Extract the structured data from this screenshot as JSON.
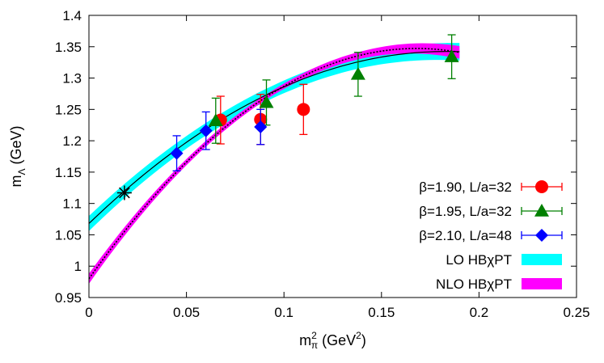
{
  "chart_data": {
    "type": "scatter",
    "xlabel": "m",
    "xlabel_sub": "π",
    "xlabel_sup": "2",
    "xlabel_unit_open": " (GeV",
    "xlabel_unit_sup": "2",
    "xlabel_unit_close": ")",
    "ylabel": "m",
    "ylabel_sub": "Λ",
    "ylabel_unit": " (GeV)",
    "xlim": [
      0,
      0.25
    ],
    "ylim": [
      0.95,
      1.4
    ],
    "xticks": [
      0,
      0.05,
      0.1,
      0.15,
      0.2,
      0.25
    ],
    "xtick_labels": [
      "0",
      "0.05",
      "0.1",
      "0.15",
      "0.2",
      "0.25"
    ],
    "yticks": [
      0.95,
      1.0,
      1.05,
      1.1,
      1.15,
      1.2,
      1.25,
      1.3,
      1.35,
      1.4
    ],
    "ytick_labels": [
      "0.95",
      "1",
      "1.05",
      "1.1",
      "1.15",
      "1.2",
      "1.25",
      "1.3",
      "1.35",
      "1.4"
    ],
    "grid": false,
    "legend_position": "bottom-right",
    "series": [
      {
        "name": "β=1.90, L/a=32",
        "marker": "circle",
        "color": "#ff0000",
        "points": [
          {
            "x": 0.0675,
            "y": 1.233,
            "err": 0.038
          },
          {
            "x": 0.088,
            "y": 1.234,
            "err": 0.04
          },
          {
            "x": 0.11,
            "y": 1.25,
            "err": 0.04
          }
        ]
      },
      {
        "name": "β=1.95, L/a=32",
        "marker": "triangle",
        "color": "#008000",
        "points": [
          {
            "x": 0.065,
            "y": 1.232,
            "err": 0.036
          },
          {
            "x": 0.091,
            "y": 1.261,
            "err": 0.036
          },
          {
            "x": 0.138,
            "y": 1.306,
            "err": 0.035
          },
          {
            "x": 0.186,
            "y": 1.334,
            "err": 0.035
          }
        ]
      },
      {
        "name": "β=2.10, L/a=48",
        "marker": "diamond",
        "color": "#0000ff",
        "points": [
          {
            "x": 0.045,
            "y": 1.18,
            "err": 0.028
          },
          {
            "x": 0.06,
            "y": 1.216,
            "err": 0.03
          },
          {
            "x": 0.088,
            "y": 1.222,
            "err": 0.028
          }
        ]
      }
    ],
    "bands": [
      {
        "name": "LO HBχPT",
        "color": "#00ffff",
        "x_range": [
          0,
          0.19
        ],
        "central": {
          "c0": 1.068,
          "c1": 3.0,
          "c2": -8.2
        },
        "halfwidth": [
          0.012,
          0.01,
          0.01,
          0.011,
          0.014
        ]
      },
      {
        "name": "NLO HBχPT",
        "color": "#ff00ff",
        "x_range": [
          0,
          0.19
        ],
        "central": {
          "c0": 0.98,
          "c1": 4.37,
          "c2": -13.0
        },
        "halfwidth": [
          0.008,
          0.005,
          0.004,
          0.006,
          0.01
        ]
      }
    ],
    "physical_point": {
      "x": 0.0182,
      "y": 1.117,
      "marker": "asterisk",
      "color": "#000000"
    }
  }
}
